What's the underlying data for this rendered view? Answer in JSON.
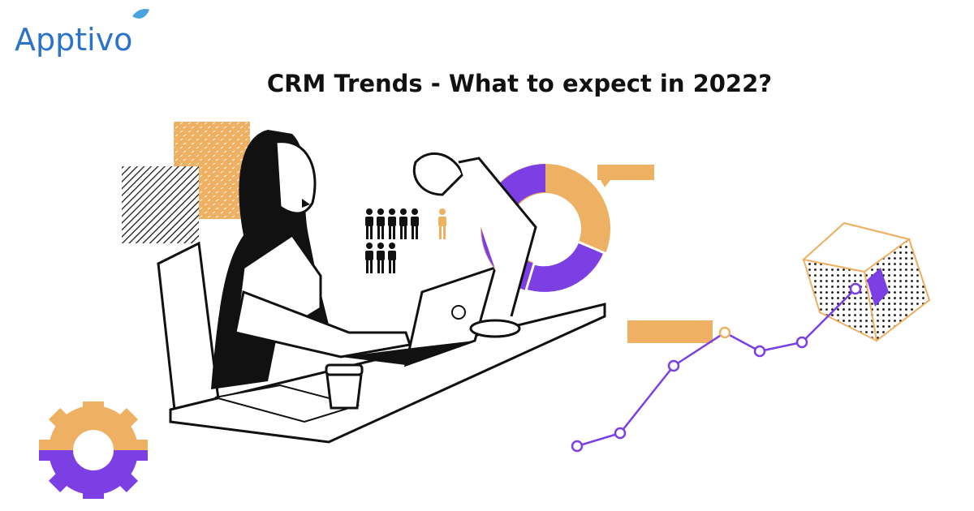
{
  "logo": {
    "text": "Apptivo"
  },
  "header": {
    "title": "CRM Trends - What to expect in 2022?"
  }
}
